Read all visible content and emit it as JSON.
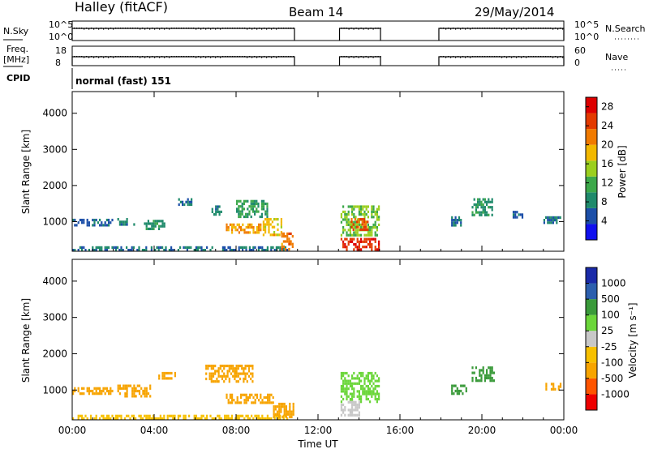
{
  "header": {
    "station": "Halley (fitACF)",
    "beam": "Beam 14",
    "date": "29/May/2014"
  },
  "panel_labels": {
    "nsky": "N.Sky",
    "freq": "Freq.",
    "mhz": "[MHz]",
    "cpid": "CPID",
    "nsearch": "N.Search",
    "nave": "Nave",
    "nsky_hi": "10^5",
    "nsky_lo": "10^0",
    "nsearch_hi": "10^5",
    "nsearch_lo": "10^0",
    "freq_hi": "18",
    "freq_lo": "8",
    "nave_hi": "60",
    "nave_lo": "0",
    "cpid_text": "normal (fast) 151"
  },
  "colors": {
    "power": [
      "#1010ee",
      "#1c4fa8",
      "#1f8a6b",
      "#3ca84a",
      "#9bcf1e",
      "#f2b800",
      "#f07a00",
      "#e33a00",
      "#dd0000"
    ],
    "velocity": [
      "#ee0000",
      "#ff5500",
      "#f7a400",
      "#f7c000",
      "#c8c8c8",
      "#6bd63a",
      "#3a9a3a",
      "#2c5fae",
      "#1a2aa8"
    ],
    "lines": "#000000"
  },
  "chart_data": [
    {
      "type": "line",
      "title": "N.Sky / N.Search",
      "x_ranges_on_hours": [
        [
          0.0,
          10.85
        ],
        [
          13.05,
          15.05
        ],
        [
          17.9,
          24.0
        ]
      ],
      "x_unit": "hours UT"
    },
    {
      "type": "line",
      "title": "Freq. / Nave",
      "freq_mhz": 11,
      "x_ranges_on_hours": [
        [
          0.0,
          10.85
        ],
        [
          13.05,
          15.05
        ],
        [
          17.9,
          24.0
        ]
      ]
    },
    {
      "type": "heatmap",
      "title": "Power",
      "ylabel": "Slant Range [km]",
      "xlabel": "Time UT",
      "xlim_hours": [
        0,
        24
      ],
      "ylim": [
        180,
        4600
      ],
      "y_ticks": [
        "1000",
        "2000",
        "3000",
        "4000"
      ],
      "x_ticks": [
        "00:00",
        "04:00",
        "08:00",
        "12:00",
        "16:00",
        "20:00",
        "00:00"
      ],
      "colorbar": {
        "label": "Power [dB]",
        "ticks": [
          "4",
          "8",
          "12",
          "16",
          "20",
          "24",
          "28"
        ],
        "range": [
          0,
          30
        ]
      },
      "regions": [
        {
          "t": [
            0.0,
            2.0
          ],
          "r": [
            880,
            1080
          ],
          "v": 6
        },
        {
          "t": [
            0.0,
            10.5
          ],
          "r": [
            220,
            320
          ],
          "v": 7
        },
        {
          "t": [
            2.2,
            3.0
          ],
          "r": [
            950,
            1100
          ],
          "v": 8
        },
        {
          "t": [
            3.5,
            4.5
          ],
          "r": [
            820,
            1050
          ],
          "v": 9
        },
        {
          "t": [
            5.0,
            5.8
          ],
          "r": [
            1450,
            1650
          ],
          "v": 7
        },
        {
          "t": [
            6.8,
            7.3
          ],
          "r": [
            1200,
            1450
          ],
          "v": 8
        },
        {
          "t": [
            7.5,
            9.2
          ],
          "r": [
            700,
            950
          ],
          "v": 20
        },
        {
          "t": [
            8.0,
            9.5
          ],
          "r": [
            1150,
            1600
          ],
          "v": 10
        },
        {
          "t": [
            9.3,
            10.2
          ],
          "r": [
            650,
            1100
          ],
          "v": 18
        },
        {
          "t": [
            10.2,
            10.8
          ],
          "r": [
            250,
            700
          ],
          "v": 22
        },
        {
          "t": [
            13.1,
            15.0
          ],
          "r": [
            650,
            1450
          ],
          "v": 14
        },
        {
          "t": [
            13.6,
            14.4
          ],
          "r": [
            800,
            1100
          ],
          "v": 24
        },
        {
          "t": [
            13.1,
            15.0
          ],
          "r": [
            250,
            550
          ],
          "v": 26
        },
        {
          "t": [
            18.5,
            19.0
          ],
          "r": [
            900,
            1150
          ],
          "v": 6
        },
        {
          "t": [
            19.5,
            20.5
          ],
          "r": [
            1200,
            1650
          ],
          "v": 9
        },
        {
          "t": [
            21.5,
            22.0
          ],
          "r": [
            1100,
            1300
          ],
          "v": 6
        },
        {
          "t": [
            23.0,
            23.8
          ],
          "r": [
            950,
            1150
          ],
          "v": 7
        }
      ]
    },
    {
      "type": "heatmap",
      "title": "Velocity",
      "ylabel": "Slant Range [km]",
      "xlabel": "Time UT",
      "xlim_hours": [
        0,
        24
      ],
      "ylim": [
        180,
        4600
      ],
      "y_ticks": [
        "1000",
        "2000",
        "3000",
        "4000"
      ],
      "x_ticks": [
        "00:00",
        "04:00",
        "08:00",
        "12:00",
        "16:00",
        "20:00",
        "00:00"
      ],
      "colorbar": {
        "label": "Velocity [m s⁻¹]",
        "ticks": [
          "-1000",
          "-500",
          "-100",
          "-25",
          "25",
          "100",
          "500",
          "1000"
        ]
      },
      "regions": [
        {
          "t": [
            0.0,
            2.0
          ],
          "r": [
            880,
            1080
          ],
          "v": -150
        },
        {
          "t": [
            0.0,
            10.5
          ],
          "r": [
            220,
            320
          ],
          "v": -60
        },
        {
          "t": [
            2.2,
            3.8
          ],
          "r": [
            850,
            1150
          ],
          "v": -300
        },
        {
          "t": [
            4.2,
            5.0
          ],
          "r": [
            1350,
            1500
          ],
          "v": -200
        },
        {
          "t": [
            6.5,
            8.8
          ],
          "r": [
            1250,
            1700
          ],
          "v": -250
        },
        {
          "t": [
            7.5,
            9.8
          ],
          "r": [
            650,
            900
          ],
          "v": -180
        },
        {
          "t": [
            9.8,
            10.8
          ],
          "r": [
            250,
            650
          ],
          "v": -220
        },
        {
          "t": [
            13.1,
            15.0
          ],
          "r": [
            700,
            1500
          ],
          "v": 80
        },
        {
          "t": [
            13.1,
            14.0
          ],
          "r": [
            300,
            700
          ],
          "v": 5
        },
        {
          "t": [
            18.5,
            19.2
          ],
          "r": [
            900,
            1150
          ],
          "v": 120
        },
        {
          "t": [
            19.5,
            20.6
          ],
          "r": [
            1250,
            1650
          ],
          "v": 300
        },
        {
          "t": [
            23.1,
            23.8
          ],
          "r": [
            1050,
            1200
          ],
          "v": -150
        }
      ]
    }
  ],
  "axis_labels": {
    "ylabel": "Slant Range [km]",
    "xlabel": "Time UT",
    "power_label": "Power [dB]",
    "velocity_label": "Velocity [m s⁻¹]"
  }
}
